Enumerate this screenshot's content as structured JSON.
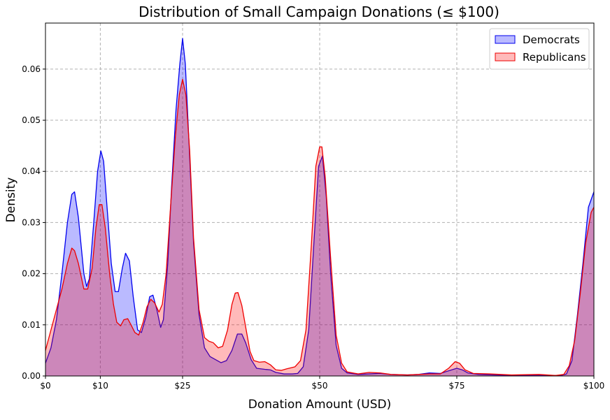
{
  "chart_data": {
    "type": "area",
    "title": "Distribution of Small Campaign Donations (≤ $100)",
    "xlabel": "Donation Amount (USD)",
    "ylabel": "Density",
    "xlim": [
      0,
      100
    ],
    "ylim": [
      0,
      0.069
    ],
    "grid": true,
    "legend_position": "top-right",
    "x_ticks": [
      {
        "value": 0,
        "label": "$0"
      },
      {
        "value": 10,
        "label": "$10"
      },
      {
        "value": 25,
        "label": "$25"
      },
      {
        "value": 50,
        "label": "$50"
      },
      {
        "value": 75,
        "label": "$75"
      },
      {
        "value": 100,
        "label": "$100"
      }
    ],
    "y_ticks": [
      {
        "value": 0,
        "label": "0.00"
      },
      {
        "value": 0.01,
        "label": "0.01"
      },
      {
        "value": 0.02,
        "label": "0.02"
      },
      {
        "value": 0.03,
        "label": "0.03"
      },
      {
        "value": 0.04,
        "label": "0.04"
      },
      {
        "value": 0.05,
        "label": "0.05"
      },
      {
        "value": 0.06,
        "label": "0.06"
      }
    ],
    "series": [
      {
        "name": "Democrats",
        "line_color": "#0000ee",
        "fill_color": "#0000ff",
        "fill_opacity": 0.27,
        "points": [
          [
            0,
            0.0025
          ],
          [
            1,
            0.0055
          ],
          [
            2,
            0.011
          ],
          [
            3,
            0.02
          ],
          [
            4,
            0.03
          ],
          [
            4.8,
            0.0355
          ],
          [
            5.3,
            0.036
          ],
          [
            6,
            0.031
          ],
          [
            7,
            0.02
          ],
          [
            7.5,
            0.0175
          ],
          [
            8,
            0.019
          ],
          [
            8.8,
            0.03
          ],
          [
            9.5,
            0.04
          ],
          [
            10.1,
            0.044
          ],
          [
            10.6,
            0.042
          ],
          [
            11.3,
            0.032
          ],
          [
            12,
            0.022
          ],
          [
            12.7,
            0.0165
          ],
          [
            13.3,
            0.0165
          ],
          [
            14,
            0.021
          ],
          [
            14.6,
            0.024
          ],
          [
            15.3,
            0.0225
          ],
          [
            16,
            0.0155
          ],
          [
            16.8,
            0.009
          ],
          [
            17.5,
            0.0085
          ],
          [
            18.3,
            0.0115
          ],
          [
            19,
            0.0155
          ],
          [
            19.6,
            0.0158
          ],
          [
            20.3,
            0.013
          ],
          [
            21,
            0.0095
          ],
          [
            21.5,
            0.011
          ],
          [
            22.3,
            0.022
          ],
          [
            23,
            0.037
          ],
          [
            23.8,
            0.052
          ],
          [
            24.5,
            0.061
          ],
          [
            25,
            0.066
          ],
          [
            25.5,
            0.061
          ],
          [
            26.2,
            0.045
          ],
          [
            27,
            0.026
          ],
          [
            28,
            0.012
          ],
          [
            29,
            0.0055
          ],
          [
            30,
            0.0038
          ],
          [
            31,
            0.0032
          ],
          [
            32,
            0.0026
          ],
          [
            33,
            0.003
          ],
          [
            34,
            0.005
          ],
          [
            35,
            0.0082
          ],
          [
            35.8,
            0.0082
          ],
          [
            36.5,
            0.0065
          ],
          [
            37.5,
            0.0032
          ],
          [
            38.5,
            0.0015
          ],
          [
            40,
            0.0013
          ],
          [
            41,
            0.0012
          ],
          [
            42,
            0.0007
          ],
          [
            43.5,
            0.0004
          ],
          [
            45,
            0.0004
          ],
          [
            46,
            0.0005
          ],
          [
            47,
            0.0018
          ],
          [
            48,
            0.009
          ],
          [
            49,
            0.027
          ],
          [
            49.8,
            0.041
          ],
          [
            50.5,
            0.043
          ],
          [
            51.2,
            0.035
          ],
          [
            52,
            0.02
          ],
          [
            53,
            0.006
          ],
          [
            54,
            0.0015
          ],
          [
            55,
            0.0006
          ],
          [
            57,
            0.0003
          ],
          [
            59,
            0.0004
          ],
          [
            61,
            0.0005
          ],
          [
            63,
            0.0003
          ],
          [
            66,
            0.0002
          ],
          [
            68,
            0.0003
          ],
          [
            70,
            0.0006
          ],
          [
            72,
            0.0005
          ],
          [
            73.5,
            0.001
          ],
          [
            75,
            0.0015
          ],
          [
            76,
            0.0012
          ],
          [
            77,
            0.0006
          ],
          [
            79,
            0.0003
          ],
          [
            82,
            0.0002
          ],
          [
            86,
            0.0001
          ],
          [
            90,
            0.0001
          ],
          [
            94,
            0.0001
          ],
          [
            95,
            0.0004
          ],
          [
            96,
            0.003
          ],
          [
            97,
            0.012
          ],
          [
            98,
            0.022
          ],
          [
            99,
            0.033
          ],
          [
            100,
            0.036
          ]
        ]
      },
      {
        "name": "Republicans",
        "line_color": "#ee0000",
        "fill_color": "#ff0000",
        "fill_opacity": 0.27,
        "points": [
          [
            0,
            0.005
          ],
          [
            1,
            0.009
          ],
          [
            2,
            0.013
          ],
          [
            3,
            0.017
          ],
          [
            4,
            0.022
          ],
          [
            4.8,
            0.025
          ],
          [
            5.3,
            0.0245
          ],
          [
            6,
            0.022
          ],
          [
            7,
            0.017
          ],
          [
            7.7,
            0.017
          ],
          [
            8.5,
            0.021
          ],
          [
            9.2,
            0.029
          ],
          [
            9.8,
            0.0335
          ],
          [
            10.3,
            0.0335
          ],
          [
            10.9,
            0.029
          ],
          [
            11.7,
            0.02
          ],
          [
            12.4,
            0.014
          ],
          [
            13,
            0.0105
          ],
          [
            13.7,
            0.0098
          ],
          [
            14.3,
            0.011
          ],
          [
            15,
            0.0112
          ],
          [
            15.6,
            0.01
          ],
          [
            16.3,
            0.0085
          ],
          [
            17,
            0.008
          ],
          [
            17.8,
            0.0105
          ],
          [
            18.5,
            0.0135
          ],
          [
            19.2,
            0.015
          ],
          [
            19.9,
            0.0143
          ],
          [
            20.7,
            0.0125
          ],
          [
            21.3,
            0.014
          ],
          [
            22,
            0.02
          ],
          [
            22.8,
            0.033
          ],
          [
            23.7,
            0.047
          ],
          [
            24.4,
            0.055
          ],
          [
            25,
            0.058
          ],
          [
            25.6,
            0.055
          ],
          [
            26.3,
            0.044
          ],
          [
            27,
            0.027
          ],
          [
            28,
            0.013
          ],
          [
            29,
            0.0075
          ],
          [
            29.8,
            0.0068
          ],
          [
            30.6,
            0.0065
          ],
          [
            31.5,
            0.0055
          ],
          [
            32.3,
            0.0058
          ],
          [
            33.2,
            0.009
          ],
          [
            34,
            0.014
          ],
          [
            34.6,
            0.0162
          ],
          [
            35.1,
            0.0163
          ],
          [
            35.8,
            0.0138
          ],
          [
            36.6,
            0.009
          ],
          [
            37.3,
            0.0048
          ],
          [
            38,
            0.003
          ],
          [
            39,
            0.0027
          ],
          [
            40,
            0.0028
          ],
          [
            41,
            0.0022
          ],
          [
            42,
            0.0012
          ],
          [
            43,
            0.0011
          ],
          [
            44,
            0.0014
          ],
          [
            45.5,
            0.0018
          ],
          [
            46.5,
            0.003
          ],
          [
            47.5,
            0.009
          ],
          [
            48.5,
            0.026
          ],
          [
            49.3,
            0.041
          ],
          [
            50,
            0.0448
          ],
          [
            50.4,
            0.0448
          ],
          [
            51,
            0.039
          ],
          [
            52,
            0.023
          ],
          [
            53,
            0.008
          ],
          [
            54,
            0.0025
          ],
          [
            55,
            0.0008
          ],
          [
            57,
            0.0004
          ],
          [
            59,
            0.0007
          ],
          [
            61,
            0.0006
          ],
          [
            63,
            0.0003
          ],
          [
            66,
            0.0002
          ],
          [
            68,
            0.0003
          ],
          [
            70,
            0.0004
          ],
          [
            72,
            0.0004
          ],
          [
            73.5,
            0.0015
          ],
          [
            74.7,
            0.0028
          ],
          [
            75.5,
            0.0025
          ],
          [
            76.5,
            0.0012
          ],
          [
            78,
            0.0005
          ],
          [
            81,
            0.0004
          ],
          [
            85,
            0.0002
          ],
          [
            90,
            0.0003
          ],
          [
            93,
            0.0001
          ],
          [
            94.5,
            0.0003
          ],
          [
            95.5,
            0.002
          ],
          [
            96.5,
            0.007
          ],
          [
            97.5,
            0.016
          ],
          [
            98.5,
            0.026
          ],
          [
            99.5,
            0.032
          ],
          [
            100,
            0.033
          ]
        ]
      }
    ]
  }
}
